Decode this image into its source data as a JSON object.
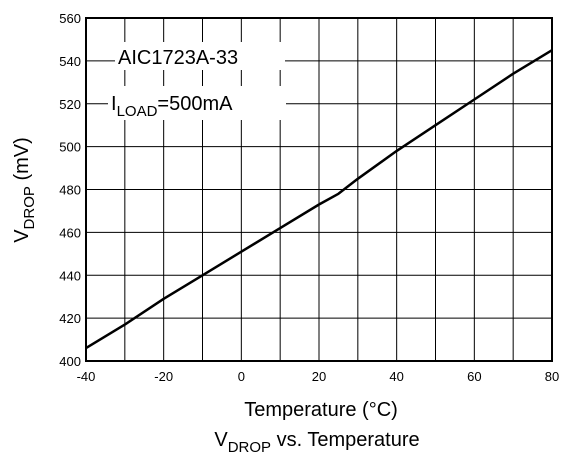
{
  "chart_data": {
    "type": "line",
    "title": "",
    "caption": {
      "main": "V",
      "sub": "DROP",
      "rest": " vs. Temperature"
    },
    "xlabel": "Temperature (°C)",
    "ylabel": {
      "main": "V",
      "sub": "DROP",
      "rest": " (mV)"
    },
    "xlim": [
      -40,
      80
    ],
    "ylim": [
      400,
      560
    ],
    "xticks": [
      -40,
      -20,
      0,
      20,
      40,
      60,
      80
    ],
    "yticks": [
      400,
      420,
      440,
      460,
      480,
      500,
      520,
      540,
      560
    ],
    "grid": true,
    "annotations": [
      {
        "text": "AIC1723A-33"
      },
      {
        "main": "I",
        "sub": "LOAD",
        "rest": "=500mA"
      }
    ],
    "series": [
      {
        "x": [
          -40,
          -30,
          -20,
          -10,
          0,
          10,
          20,
          25,
          30,
          40,
          50,
          60,
          70,
          80
        ],
        "y": [
          406,
          417,
          429,
          440,
          451,
          462,
          473,
          478,
          485,
          498,
          510,
          522,
          534,
          545
        ]
      }
    ]
  }
}
